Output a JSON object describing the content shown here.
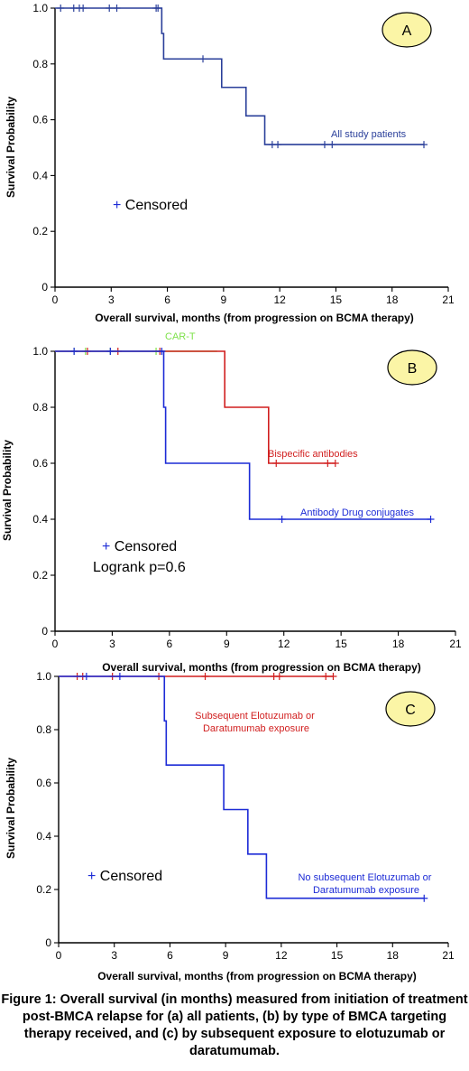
{
  "caption": "Figure 1: Overall survival (in months) measured from initiation of treatment post-BMCA relapse for (a) all patients, (b) by type of BMCA targeting therapy received, and (c) by subsequent exposure to elotuzumab or daratumumab.",
  "chart_data": [
    {
      "type": "line",
      "panel": "A",
      "xlabel": "Overall survival, months (from progression on BCMA therapy)",
      "ylabel": "Survival Probability",
      "xlim": [
        0,
        21
      ],
      "ylim": [
        0,
        1
      ],
      "x_ticks": [
        0,
        3,
        6,
        9,
        12,
        15,
        18,
        21
      ],
      "y_ticks": [
        0,
        0.2,
        0.4,
        0.6,
        0.8,
        1.0
      ],
      "y_tick_labels": [
        "0",
        "0.2",
        "0.4",
        "0.6",
        "0.8",
        "1.0"
      ],
      "legend": "+ Censored",
      "notes": [],
      "series": [
        {
          "name": "All study patients",
          "color": "#2a3f9a",
          "x": [
            0,
            5.7,
            5.8,
            8.9,
            10.2,
            11.2,
            19.7
          ],
          "y": [
            1.0,
            0.909,
            0.818,
            0.716,
            0.614,
            0.511,
            0.511
          ],
          "censored_x": [
            0.3,
            1.0,
            1.3,
            1.5,
            2.9,
            3.3,
            5.4,
            5.5,
            7.9,
            11.6,
            11.9,
            14.4,
            14.8,
            19.7
          ],
          "censored_y": [
            1.0,
            1.0,
            1.0,
            1.0,
            1.0,
            1.0,
            1.0,
            1.0,
            0.818,
            0.511,
            0.511,
            0.511,
            0.511,
            0.511
          ]
        }
      ]
    },
    {
      "type": "line",
      "panel": "B",
      "xlabel": "Overall survival, months (from progression on BCMA therapy)",
      "ylabel": "Survival Probability",
      "xlim": [
        0,
        21
      ],
      "ylim": [
        0,
        1
      ],
      "x_ticks": [
        0,
        3,
        6,
        9,
        12,
        15,
        18,
        21
      ],
      "y_ticks": [
        0,
        0.2,
        0.4,
        0.6,
        0.8,
        1.0
      ],
      "y_tick_labels": [
        "0",
        "0.2",
        "0.4",
        "0.6",
        "0.8",
        "1.0"
      ],
      "legend": "+ Censored",
      "notes": [
        "Logrank p=0.6"
      ],
      "series": [
        {
          "name": "CAR-T",
          "color": "#7ee14a",
          "x": [
            0,
            8.5
          ],
          "y": [
            1.0,
            1.0
          ],
          "censored_x": [
            1.0,
            1.6,
            2.9,
            5.3
          ],
          "censored_y": [
            1.0,
            1.0,
            1.0,
            1.0
          ]
        },
        {
          "name": "Bispecific antibodies",
          "color": "#d11f1f",
          "x": [
            0,
            8.9,
            11.2,
            14.7
          ],
          "y": [
            1.0,
            0.8,
            0.6,
            0.6
          ],
          "censored_x": [
            1.7,
            3.3,
            5.5,
            11.6,
            14.3,
            14.7
          ],
          "censored_y": [
            1.0,
            1.0,
            1.0,
            0.6,
            0.6,
            0.6
          ]
        },
        {
          "name": "Antibody Drug conjugates",
          "color": "#1c2bd6",
          "x": [
            0,
            5.7,
            5.8,
            10.2,
            19.7
          ],
          "y": [
            1.0,
            0.8,
            0.6,
            0.4,
            0.4
          ],
          "censored_x": [
            1.0,
            2.9,
            5.6,
            11.9,
            19.7
          ],
          "censored_y": [
            1.0,
            1.0,
            1.0,
            0.4,
            0.4
          ]
        }
      ]
    },
    {
      "type": "line",
      "panel": "C",
      "xlabel": "Overall survival, months (from progression on BCMA therapy)",
      "ylabel": "Survival Probability",
      "xlim": [
        0,
        21
      ],
      "ylim": [
        0,
        1
      ],
      "x_ticks": [
        0,
        3,
        6,
        9,
        12,
        15,
        18,
        21
      ],
      "y_ticks": [
        0,
        0.2,
        0.4,
        0.6,
        0.8,
        1.0
      ],
      "y_tick_labels": [
        "0",
        "0.2",
        "0.4",
        "0.6",
        "0.8",
        "1.0"
      ],
      "legend": "+ Censored",
      "notes": [],
      "series": [
        {
          "name": "Subsequent Elotuzumab or Daratumumab exposure",
          "color": "#d11f1f",
          "x": [
            0,
            14.8
          ],
          "y": [
            1.0,
            1.0
          ],
          "censored_x": [
            1.0,
            1.3,
            2.9,
            5.4,
            7.9,
            11.6,
            11.9,
            14.4,
            14.8
          ],
          "censored_y": [
            1.0,
            1.0,
            1.0,
            1.0,
            1.0,
            1.0,
            1.0,
            1.0,
            1.0
          ]
        },
        {
          "name": "No subsequent Elotuzumab or Daratumumab exposure",
          "color": "#1c2bd6",
          "x": [
            0,
            5.7,
            5.8,
            8.9,
            10.2,
            11.2,
            19.7
          ],
          "y": [
            1.0,
            0.833,
            0.667,
            0.5,
            0.333,
            0.167,
            0.167
          ],
          "censored_x": [
            1.5,
            3.3,
            19.7
          ],
          "censored_y": [
            1.0,
            1.0,
            0.167
          ]
        }
      ]
    }
  ]
}
